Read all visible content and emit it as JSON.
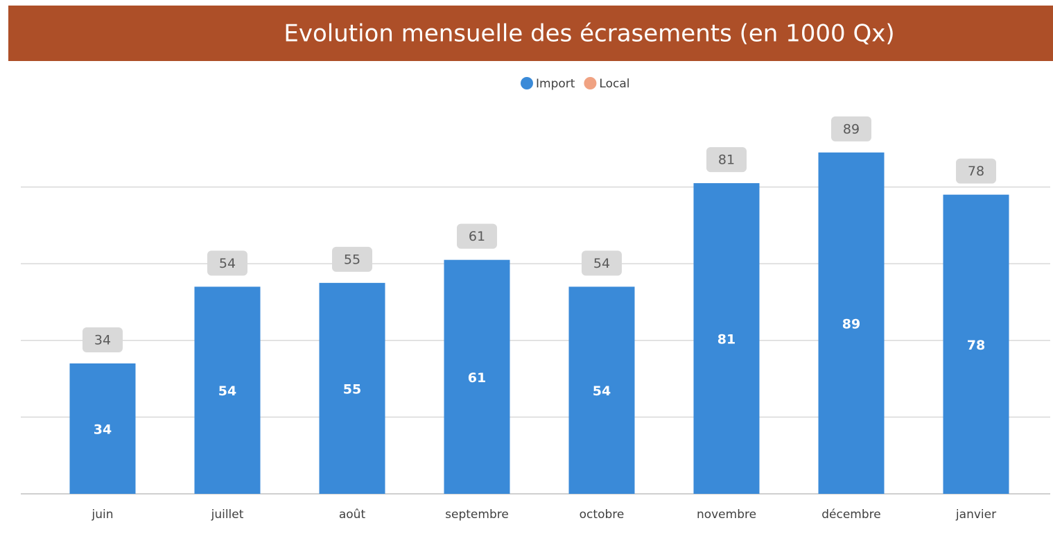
{
  "chart_data": {
    "type": "bar",
    "stacked": true,
    "title": "Evolution mensuelle des écrasements (en 1000 Qx)",
    "categories": [
      "juin",
      "juillet",
      "août",
      "septembre",
      "octobre",
      "novembre",
      "décembre",
      "janvier"
    ],
    "series": [
      {
        "name": "Import",
        "color": "#3a8ad8",
        "values": [
          34,
          54,
          55,
          61,
          54,
          81,
          89,
          78
        ]
      },
      {
        "name": "Local",
        "color": "#f0a282",
        "values": [
          0,
          0,
          0,
          0,
          0,
          0,
          0,
          0
        ]
      }
    ],
    "ylim": [
      0,
      100
    ],
    "yticks": [
      0,
      20,
      40,
      60,
      80
    ],
    "grid": true,
    "legend": "top"
  }
}
